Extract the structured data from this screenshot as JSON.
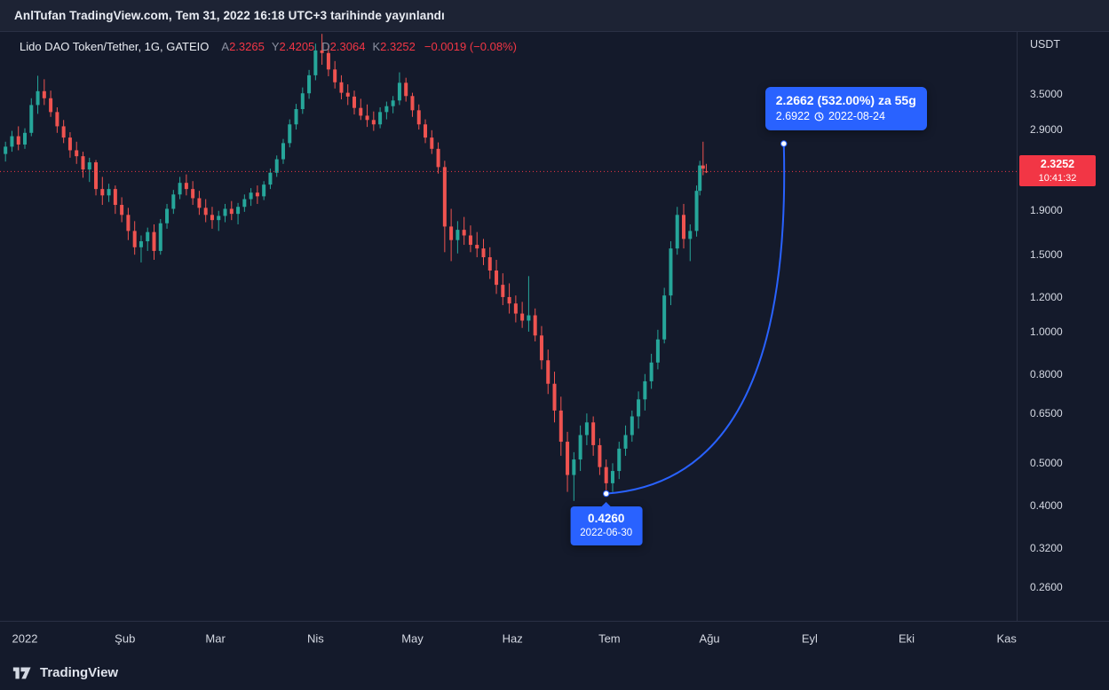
{
  "header": {
    "publish_text": "AnlTufan TradingView.com, Tem 31, 2022 16:18 UTC+3 tarihinde yayınlandı"
  },
  "legend": {
    "title": "Lido DAO Token/Tether, 1G, GATEIO",
    "ohlc": [
      {
        "label": "A",
        "value": "2.3265"
      },
      {
        "label": "Y",
        "value": "2.4205"
      },
      {
        "label": "D",
        "value": "2.3064"
      },
      {
        "label": "K",
        "value": "2.3252"
      }
    ],
    "change": "−0.0019 (−0.08%)"
  },
  "price_axis": {
    "currency": "USDT",
    "ticks": [
      {
        "label": "3.5000",
        "value": 3.5
      },
      {
        "label": "2.9000",
        "value": 2.9
      },
      {
        "label": "1.9000",
        "value": 1.9
      },
      {
        "label": "1.5000",
        "value": 1.5
      },
      {
        "label": "1.2000",
        "value": 1.2
      },
      {
        "label": "1.0000",
        "value": 1.0
      },
      {
        "label": "0.8000",
        "value": 0.8
      },
      {
        "label": "0.6500",
        "value": 0.65
      },
      {
        "label": "0.5000",
        "value": 0.5
      },
      {
        "label": "0.4000",
        "value": 0.4
      },
      {
        "label": "0.3200",
        "value": 0.32
      },
      {
        "label": "0.2600",
        "value": 0.26
      }
    ],
    "last_price": {
      "value": "2.3252",
      "countdown": "10:41:32"
    }
  },
  "time_axis": {
    "ticks": [
      {
        "label": "2022",
        "day": 0
      },
      {
        "label": "Şub",
        "day": 31
      },
      {
        "label": "Mar",
        "day": 59
      },
      {
        "label": "Nis",
        "day": 90
      },
      {
        "label": "May",
        "day": 120
      },
      {
        "label": "Haz",
        "day": 151
      },
      {
        "label": "Tem",
        "day": 181
      },
      {
        "label": "Ağu",
        "day": 212
      },
      {
        "label": "Eyl",
        "day": 243
      },
      {
        "label": "Eki",
        "day": 273
      },
      {
        "label": "Kas",
        "day": 304
      }
    ]
  },
  "annotations": {
    "low_label": {
      "price": "0.4260",
      "date": "2022-06-30"
    },
    "target_label": {
      "line1": "2.2662 (532.00%) za 55g",
      "price": "2.6922",
      "date": "2022-08-24"
    }
  },
  "branding": {
    "name": "TradingView"
  },
  "chart_data": {
    "type": "candlestick",
    "title": "Lido DAO Token/Tether, 1G, GATEIO",
    "y_scale": "log",
    "ylim": [
      0.218,
      4.85
    ],
    "x_unit": "days_since_2022-01-01",
    "xlim": [
      -7.7,
      307.1
    ],
    "last_price": 2.3252,
    "colors": {
      "up": "#26a69a",
      "down": "#ef5350",
      "accent": "#2962ff",
      "last_line": "#f23645"
    },
    "projection": {
      "from": {
        "day": 180,
        "price": 0.426,
        "date": "2022-06-30"
      },
      "to": {
        "day": 235,
        "price": 2.6922,
        "date": "2022-08-24"
      },
      "change": 2.2662,
      "change_pct": 532.0,
      "days": 55
    },
    "candles": [
      [
        -6,
        2.55,
        2.72,
        2.45,
        2.65
      ],
      [
        -4,
        2.65,
        2.88,
        2.58,
        2.8
      ],
      [
        -2,
        2.8,
        2.95,
        2.6,
        2.68
      ],
      [
        0,
        2.68,
        2.92,
        2.62,
        2.85
      ],
      [
        2,
        2.85,
        3.42,
        2.8,
        3.3
      ],
      [
        4,
        3.3,
        3.85,
        3.15,
        3.55
      ],
      [
        6,
        3.55,
        3.78,
        3.3,
        3.42
      ],
      [
        8,
        3.42,
        3.56,
        3.1,
        3.18
      ],
      [
        10,
        3.18,
        3.26,
        2.85,
        2.95
      ],
      [
        12,
        2.95,
        3.05,
        2.7,
        2.78
      ],
      [
        14,
        2.78,
        2.86,
        2.5,
        2.6
      ],
      [
        16,
        2.6,
        2.72,
        2.42,
        2.52
      ],
      [
        18,
        2.52,
        2.58,
        2.25,
        2.35
      ],
      [
        20,
        2.35,
        2.5,
        2.2,
        2.44
      ],
      [
        22,
        2.44,
        2.47,
        2.05,
        2.12
      ],
      [
        24,
        2.12,
        2.26,
        1.95,
        2.05
      ],
      [
        26,
        2.05,
        2.18,
        1.98,
        2.12
      ],
      [
        28,
        2.12,
        2.16,
        1.86,
        1.95
      ],
      [
        30,
        1.95,
        2.03,
        1.78,
        1.85
      ],
      [
        32,
        1.85,
        1.92,
        1.62,
        1.7
      ],
      [
        34,
        1.7,
        1.79,
        1.5,
        1.56
      ],
      [
        36,
        1.56,
        1.66,
        1.44,
        1.61
      ],
      [
        38,
        1.61,
        1.73,
        1.53,
        1.69
      ],
      [
        40,
        1.69,
        1.76,
        1.46,
        1.53
      ],
      [
        42,
        1.53,
        1.81,
        1.5,
        1.77
      ],
      [
        44,
        1.77,
        1.96,
        1.72,
        1.91
      ],
      [
        46,
        1.91,
        2.11,
        1.86,
        2.06
      ],
      [
        48,
        2.06,
        2.26,
        2.01,
        2.19
      ],
      [
        50,
        2.19,
        2.29,
        2.05,
        2.12
      ],
      [
        52,
        2.12,
        2.21,
        1.95,
        2.02
      ],
      [
        54,
        2.02,
        2.1,
        1.85,
        1.92
      ],
      [
        56,
        1.92,
        2.01,
        1.78,
        1.85
      ],
      [
        58,
        1.85,
        1.93,
        1.72,
        1.8
      ],
      [
        60,
        1.8,
        1.89,
        1.7,
        1.84
      ],
      [
        62,
        1.84,
        1.96,
        1.78,
        1.91
      ],
      [
        64,
        1.91,
        1.99,
        1.8,
        1.86
      ],
      [
        66,
        1.86,
        1.97,
        1.76,
        1.93
      ],
      [
        68,
        1.93,
        2.06,
        1.88,
        2.01
      ],
      [
        70,
        2.01,
        2.13,
        1.94,
        2.08
      ],
      [
        72,
        2.08,
        2.16,
        1.96,
        2.04
      ],
      [
        74,
        2.04,
        2.21,
        2.0,
        2.17
      ],
      [
        76,
        2.17,
        2.36,
        2.12,
        2.31
      ],
      [
        78,
        2.31,
        2.53,
        2.26,
        2.48
      ],
      [
        80,
        2.48,
        2.76,
        2.42,
        2.7
      ],
      [
        82,
        2.7,
        3.06,
        2.64,
        2.98
      ],
      [
        84,
        2.98,
        3.32,
        2.9,
        3.23
      ],
      [
        86,
        3.23,
        3.62,
        3.15,
        3.51
      ],
      [
        88,
        3.51,
        3.97,
        3.41,
        3.86
      ],
      [
        90,
        3.86,
        4.56,
        3.76,
        4.4
      ],
      [
        92,
        4.4,
        4.8,
        4.08,
        4.34
      ],
      [
        94,
        4.34,
        4.52,
        3.84,
        3.98
      ],
      [
        96,
        3.98,
        4.16,
        3.6,
        3.72
      ],
      [
        98,
        3.72,
        3.86,
        3.4,
        3.52
      ],
      [
        100,
        3.52,
        3.68,
        3.3,
        3.45
      ],
      [
        102,
        3.45,
        3.56,
        3.14,
        3.25
      ],
      [
        104,
        3.25,
        3.41,
        3.05,
        3.12
      ],
      [
        106,
        3.12,
        3.31,
        2.94,
        3.05
      ],
      [
        108,
        3.05,
        3.19,
        2.88,
        2.98
      ],
      [
        110,
        2.98,
        3.26,
        2.92,
        3.18
      ],
      [
        112,
        3.18,
        3.36,
        3.06,
        3.28
      ],
      [
        114,
        3.28,
        3.46,
        3.16,
        3.38
      ],
      [
        116,
        3.38,
        3.92,
        3.3,
        3.71
      ],
      [
        118,
        3.71,
        3.81,
        3.36,
        3.46
      ],
      [
        120,
        3.46,
        3.52,
        3.1,
        3.21
      ],
      [
        122,
        3.21,
        3.31,
        2.9,
        2.98
      ],
      [
        124,
        2.98,
        3.06,
        2.7,
        2.78
      ],
      [
        126,
        2.78,
        2.89,
        2.55,
        2.62
      ],
      [
        128,
        2.62,
        2.71,
        2.3,
        2.38
      ],
      [
        130,
        2.38,
        2.46,
        1.52,
        1.74
      ],
      [
        132,
        1.74,
        1.91,
        1.45,
        1.62
      ],
      [
        134,
        1.62,
        1.79,
        1.51,
        1.71
      ],
      [
        136,
        1.71,
        1.83,
        1.58,
        1.66
      ],
      [
        138,
        1.66,
        1.75,
        1.52,
        1.58
      ],
      [
        140,
        1.58,
        1.69,
        1.48,
        1.55
      ],
      [
        142,
        1.55,
        1.63,
        1.42,
        1.48
      ],
      [
        144,
        1.48,
        1.56,
        1.32,
        1.38
      ],
      [
        146,
        1.38,
        1.46,
        1.22,
        1.28
      ],
      [
        148,
        1.28,
        1.36,
        1.15,
        1.2
      ],
      [
        150,
        1.2,
        1.29,
        1.1,
        1.16
      ],
      [
        152,
        1.16,
        1.21,
        1.05,
        1.1
      ],
      [
        154,
        1.1,
        1.17,
        1.02,
        1.06
      ],
      [
        156,
        1.06,
        1.34,
        1.0,
        1.09
      ],
      [
        158,
        1.09,
        1.13,
        0.95,
        0.98
      ],
      [
        160,
        0.98,
        1.03,
        0.82,
        0.86
      ],
      [
        162,
        0.86,
        0.91,
        0.72,
        0.76
      ],
      [
        164,
        0.76,
        0.81,
        0.62,
        0.66
      ],
      [
        166,
        0.66,
        0.71,
        0.52,
        0.56
      ],
      [
        168,
        0.56,
        0.59,
        0.43,
        0.47
      ],
      [
        170,
        0.47,
        0.53,
        0.41,
        0.51
      ],
      [
        172,
        0.51,
        0.61,
        0.48,
        0.58
      ],
      [
        174,
        0.58,
        0.65,
        0.55,
        0.62
      ],
      [
        176,
        0.62,
        0.64,
        0.52,
        0.55
      ],
      [
        178,
        0.55,
        0.57,
        0.47,
        0.49
      ],
      [
        180,
        0.49,
        0.51,
        0.426,
        0.45
      ],
      [
        182,
        0.45,
        0.5,
        0.43,
        0.48
      ],
      [
        184,
        0.48,
        0.56,
        0.46,
        0.54
      ],
      [
        186,
        0.54,
        0.61,
        0.52,
        0.58
      ],
      [
        188,
        0.58,
        0.66,
        0.56,
        0.64
      ],
      [
        190,
        0.64,
        0.73,
        0.6,
        0.7
      ],
      [
        192,
        0.7,
        0.8,
        0.66,
        0.77
      ],
      [
        194,
        0.77,
        0.89,
        0.74,
        0.85
      ],
      [
        196,
        0.85,
        1.01,
        0.82,
        0.96
      ],
      [
        198,
        0.96,
        1.26,
        0.94,
        1.21
      ],
      [
        200,
        1.21,
        1.61,
        1.15,
        1.55
      ],
      [
        202,
        1.55,
        1.93,
        1.5,
        1.85
      ],
      [
        204,
        1.85,
        1.96,
        1.55,
        1.63
      ],
      [
        206,
        1.63,
        1.76,
        1.45,
        1.7
      ],
      [
        208,
        1.7,
        2.16,
        1.65,
        2.1
      ],
      [
        209,
        2.1,
        2.46,
        2.05,
        2.4
      ],
      [
        210,
        2.4,
        2.72,
        2.28,
        2.36
      ],
      [
        211,
        2.3265,
        2.4205,
        2.3064,
        2.3252
      ]
    ]
  }
}
